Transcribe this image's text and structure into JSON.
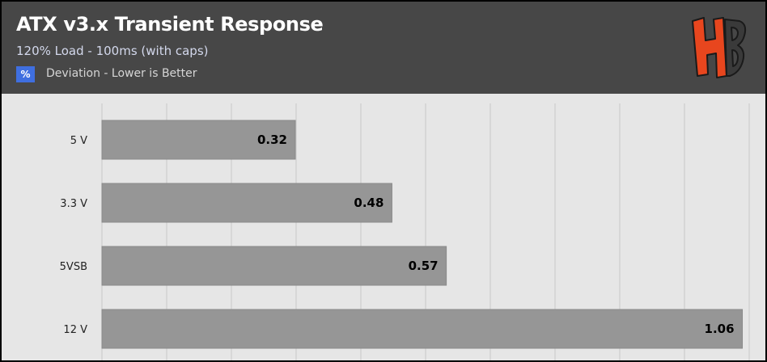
{
  "header": {
    "title": "ATX v3.x Transient Response",
    "subtitle": "120% Load - 100ms (with caps)",
    "legend_symbol": "%",
    "legend_label": "Deviation - Lower is Better",
    "logo_letters": "HB"
  },
  "colors": {
    "header_bg": "#474747",
    "plot_bg": "#e6e6e6",
    "bar": "#969696",
    "legend_swatch": "#3f6fe0",
    "logo": "#e8461e"
  },
  "chart_data": {
    "type": "bar",
    "orientation": "horizontal",
    "title": "ATX v3.x Transient Response",
    "subtitle": "120% Load - 100ms (with caps)",
    "categories": [
      "5 V",
      "3.3 V",
      "5VSB",
      "12 V"
    ],
    "series": [
      {
        "name": "Deviation - Lower is Better",
        "values": [
          0.32,
          0.48,
          0.57,
          1.06
        ]
      }
    ],
    "xlim": [
      0,
      1.07
    ],
    "grid": true,
    "legend_position": "top-left",
    "data_labels": true
  }
}
